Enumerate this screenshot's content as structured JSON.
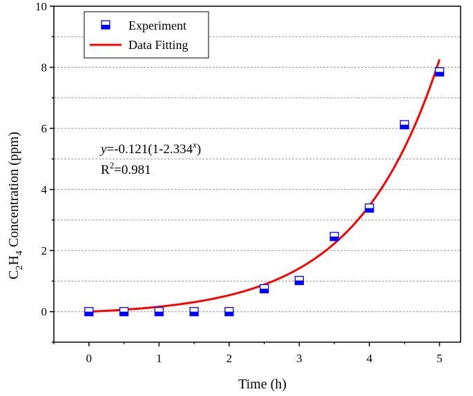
{
  "chart_data": {
    "type": "scatter",
    "xlabel": "Time (h)",
    "ylabel": {
      "parts": [
        {
          "text": "C",
          "sub": false
        },
        {
          "text": "2",
          "sub": true
        },
        {
          "text": "H",
          "sub": false
        },
        {
          "text": "4",
          "sub": true
        },
        {
          "text": " Concentration (ppm)",
          "sub": false
        }
      ]
    },
    "xlim": [
      -0.5,
      5.3
    ],
    "ylim": [
      -1,
      10
    ],
    "xticks": [
      0,
      1,
      2,
      3,
      4,
      5
    ],
    "yticks": [
      0,
      2,
      4,
      6,
      8,
      10
    ],
    "grid": "horizontal-dashed",
    "legend": {
      "position": "top-left",
      "entries": [
        "Experiment",
        "Data Fitting"
      ]
    },
    "series": [
      {
        "name": "Experiment",
        "kind": "markers",
        "color": "#0000ff",
        "x": [
          0,
          0.5,
          1,
          1.5,
          2,
          2.5,
          3,
          3.5,
          4,
          4.5,
          5
        ],
        "y": [
          0,
          0,
          0,
          0,
          0,
          0.75,
          1.02,
          2.46,
          3.39,
          6.12,
          7.85
        ]
      },
      {
        "name": "Data Fitting",
        "kind": "curve",
        "color": "#ff0000",
        "model": {
          "a": -0.121,
          "b": 2.334
        },
        "x_range": [
          0,
          5
        ]
      }
    ],
    "annotation": {
      "equation": {
        "var": "y",
        "pre": "=-0.121(1-2.334",
        "exp": "x",
        "post": ")"
      },
      "r2": {
        "label": "R",
        "sup": "2",
        "value": "=0.981"
      }
    }
  }
}
